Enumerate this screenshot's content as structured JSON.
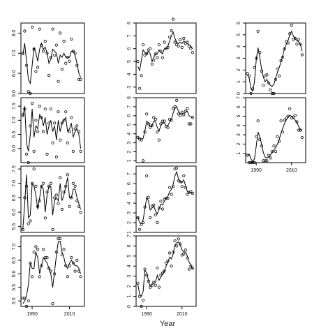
{
  "figure": {
    "xlabel": "Year"
  },
  "chart_data": [
    {
      "type": "line",
      "xlabel": "",
      "ylabel": "",
      "xlim": [
        1984,
        2018
      ],
      "ylim": [
        5.0,
        8.5
      ],
      "yticks": [
        5.0,
        6.0,
        7.0,
        8.0
      ],
      "yticklabels": [
        "5.0",
        "6.0",
        "7.0",
        "8.0"
      ],
      "xticks": [],
      "xticklabels": [],
      "points_x": [
        1985,
        1986,
        1987,
        1988,
        1989,
        1990,
        1991,
        1992,
        1993,
        1994,
        1995,
        1996,
        1997,
        1998,
        1999,
        2000,
        2001,
        2002,
        2003,
        2004,
        2005,
        2006,
        2007,
        2008,
        2009,
        2010,
        2011,
        2012,
        2013,
        2014,
        2015,
        2016
      ],
      "points_y": [
        7.0,
        8.1,
        6.4,
        5.1,
        5.0,
        8.3,
        7.2,
        6.1,
        6.3,
        8.2,
        7.4,
        7.1,
        7.6,
        7.0,
        5.9,
        6.8,
        8.2,
        6.9,
        7.4,
        5.6,
        8.0,
        6.2,
        7.6,
        6.5,
        6.8,
        6.6,
        7.7,
        7.1,
        7.0,
        6.4,
        5.7,
        5.7
      ],
      "fit_y": [
        6.9,
        7.5,
        6.6,
        5.7,
        5.5,
        6.4,
        7.3,
        7.0,
        6.6,
        7.2,
        7.5,
        7.2,
        7.3,
        7.0,
        6.5,
        6.7,
        7.2,
        7.1,
        7.0,
        6.5,
        6.9,
        6.8,
        7.0,
        6.8,
        6.8,
        6.8,
        7.1,
        7.1,
        6.9,
        6.5,
        6.0,
        5.8
      ]
    },
    {
      "type": "line",
      "xlabel": "",
      "ylabel": "",
      "xlim": [
        1984,
        2018
      ],
      "ylim": [
        2.5,
        8.0
      ],
      "yticks": [
        3,
        4,
        5,
        6,
        7,
        8
      ],
      "yticklabels": [
        "3",
        "4",
        "5",
        "6",
        "7",
        "8"
      ],
      "xticks": [],
      "xticklabels": [],
      "points_x": [
        1985,
        1986,
        1987,
        1988,
        1989,
        1990,
        1991,
        1992,
        1993,
        1994,
        1995,
        1996,
        1997,
        1998,
        1999,
        2000,
        2001,
        2002,
        2003,
        2004,
        2005,
        2006,
        2007,
        2008,
        2009,
        2010,
        2011,
        2012,
        2013,
        2014,
        2015,
        2016
      ],
      "points_y": [
        5.0,
        2.9,
        3.9,
        6.3,
        5.5,
        5.6,
        5.9,
        6.0,
        4.8,
        5.1,
        5.6,
        5.3,
        6.3,
        5.8,
        5.3,
        6.5,
        6.0,
        6.1,
        6.9,
        7.4,
        8.3,
        6.5,
        6.3,
        6.2,
        6.7,
        6.1,
        6.8,
        6.4,
        6.5,
        6.2,
        6.0,
        5.7
      ],
      "fit_y": [
        4.6,
        4.3,
        5.1,
        5.9,
        5.7,
        5.6,
        5.8,
        5.6,
        5.0,
        5.3,
        5.6,
        5.6,
        5.9,
        5.7,
        5.6,
        6.0,
        6.0,
        6.2,
        6.6,
        7.0,
        7.3,
        6.8,
        6.5,
        6.4,
        6.5,
        6.4,
        6.6,
        6.5,
        6.4,
        6.3,
        6.2,
        6.0
      ]
    },
    {
      "type": "line",
      "xlabel": "",
      "ylabel": "",
      "xlim": [
        1984,
        2018
      ],
      "ylim": [
        0,
        6
      ],
      "yticks": [
        0,
        1,
        2,
        3,
        4,
        5,
        6
      ],
      "yticklabels": [
        "0",
        "1",
        "2",
        "3",
        "4",
        "5",
        "6"
      ],
      "xticks": [],
      "xticklabels": [],
      "points_x": [
        1985,
        1986,
        1987,
        1988,
        1989,
        1990,
        1991,
        1992,
        1993,
        1994,
        1995,
        1996,
        1997,
        1998,
        1999,
        2000,
        2001,
        2002,
        2003,
        2004,
        2005,
        2006,
        2007,
        2008,
        2009,
        2010,
        2011,
        2012,
        2013,
        2014,
        2015,
        2016
      ],
      "points_y": [
        1.7,
        1.5,
        0.0,
        0.4,
        2.2,
        3.0,
        5.3,
        3.5,
        1.9,
        0.7,
        1.5,
        1.6,
        0.9,
        0.3,
        0.0,
        0.0,
        1.2,
        2.1,
        1.5,
        2.8,
        3.1,
        3.8,
        4.4,
        4.3,
        5.1,
        5.8,
        4.6,
        4.7,
        4.2,
        4.6,
        4.2,
        3.3
      ],
      "fit_y": [
        1.6,
        1.3,
        0.4,
        0.2,
        1.0,
        2.9,
        3.9,
        3.1,
        2.1,
        1.4,
        1.0,
        1.2,
        0.9,
        0.7,
        0.6,
        0.8,
        1.3,
        1.8,
        2.2,
        2.7,
        3.2,
        3.8,
        4.2,
        4.5,
        5.0,
        5.3,
        4.9,
        4.7,
        4.5,
        4.4,
        4.2,
        3.6
      ]
    },
    {
      "type": "line",
      "xlabel": "",
      "ylabel": "",
      "xlim": [
        1984,
        2018
      ],
      "ylim": [
        5.5,
        7.8
      ],
      "yticks": [
        6.0,
        6.5,
        7.0,
        7.5
      ],
      "yticklabels": [
        "6.0",
        "6.5",
        "7.0",
        "7.5"
      ],
      "xticks": [],
      "xticklabels": [],
      "points_x": [
        1985,
        1986,
        1987,
        1988,
        1989,
        1990,
        1991,
        1992,
        1993,
        1994,
        1995,
        1996,
        1997,
        1998,
        1999,
        2000,
        2001,
        2002,
        2003,
        2004,
        2005,
        2006,
        2007,
        2008,
        2009,
        2010,
        2011,
        2012,
        2013,
        2014,
        2015,
        2016
      ],
      "points_y": [
        7.2,
        7.4,
        5.8,
        5.5,
        6.8,
        7.6,
        5.9,
        7.0,
        6.6,
        7.5,
        7.1,
        6.6,
        7.4,
        5.8,
        6.9,
        7.4,
        6.2,
        6.9,
        5.7,
        7.3,
        6.3,
        6.9,
        7.0,
        7.3,
        6.2,
        6.6,
        7.1,
        5.9,
        6.7,
        6.8,
        6.6,
        5.9
      ],
      "fit_y": [
        7.1,
        7.5,
        6.2,
        5.9,
        6.5,
        7.4,
        6.4,
        6.8,
        6.7,
        7.2,
        7.1,
        6.8,
        7.1,
        6.5,
        6.8,
        7.0,
        6.6,
        6.8,
        6.3,
        7.0,
        6.6,
        6.9,
        7.0,
        7.1,
        6.6,
        6.7,
        6.9,
        6.4,
        6.6,
        6.7,
        6.5,
        6.0
      ]
    },
    {
      "type": "line",
      "xlabel": "",
      "ylabel": "",
      "xlim": [
        1984,
        2018
      ],
      "ylim": [
        0.8,
        8.0
      ],
      "yticks": [
        1,
        2,
        3,
        4,
        5,
        6,
        7,
        8
      ],
      "yticklabels": [
        "1",
        "2",
        "3",
        "4",
        "5",
        "6",
        "7",
        "8"
      ],
      "xticks": [],
      "xticklabels": [],
      "points_x": [
        1985,
        1986,
        1987,
        1988,
        1989,
        1990,
        1991,
        1992,
        1993,
        1994,
        1995,
        1996,
        1997,
        1998,
        1999,
        2000,
        2001,
        2002,
        2003,
        2004,
        2005,
        2006,
        2007,
        2008,
        2009,
        2010,
        2011,
        2012,
        2013,
        2014,
        2015,
        2016
      ],
      "points_y": [
        3.6,
        3.4,
        3.3,
        1.0,
        4.2,
        6.2,
        5.1,
        4.7,
        4.9,
        5.8,
        5.6,
        4.2,
        3.3,
        5.1,
        5.4,
        5.4,
        4.8,
        4.7,
        5.6,
        5.5,
        6.8,
        7.0,
        7.7,
        6.2,
        6.0,
        6.4,
        6.1,
        6.5,
        6.8,
        5.1,
        5.1,
        5.8
      ],
      "fit_y": [
        3.6,
        3.5,
        3.4,
        3.5,
        4.3,
        5.4,
        5.2,
        4.8,
        4.9,
        5.4,
        5.3,
        4.7,
        4.3,
        4.9,
        5.2,
        5.2,
        4.9,
        4.9,
        5.3,
        5.6,
        6.3,
        6.8,
        7.0,
        6.5,
        6.2,
        6.3,
        6.2,
        6.4,
        6.5,
        6.0,
        5.9,
        5.8
      ]
    },
    {
      "type": "line",
      "xlabel": "",
      "ylabel": "",
      "xlim": [
        1984,
        2018
      ],
      "ylim": [
        0,
        7
      ],
      "yticks": [
        1,
        2,
        3,
        4,
        5,
        6,
        7
      ],
      "yticklabels": [
        "1",
        "2",
        "3",
        "4",
        "5",
        "6",
        "7"
      ],
      "xticks": [
        1990,
        2010
      ],
      "xticklabels": [
        "1990",
        "2010"
      ],
      "points_x": [
        1985,
        1986,
        1987,
        1988,
        1989,
        1990,
        1991,
        1992,
        1993,
        1994,
        1995,
        1996,
        1997,
        1998,
        1999,
        2000,
        2001,
        2002,
        2003,
        2004,
        2005,
        2006,
        2007,
        2008,
        2009,
        2010,
        2011,
        2012,
        2013,
        2014,
        2015,
        2016
      ],
      "points_y": [
        0.8,
        0.0,
        0.0,
        0.0,
        0.0,
        2.8,
        4.5,
        2.5,
        1.8,
        0.2,
        0.2,
        0.2,
        0.8,
        0.5,
        1.2,
        1.8,
        1.2,
        2.8,
        2.3,
        4.5,
        3.3,
        4.6,
        4.8,
        5.0,
        5.8,
        4.8,
        4.9,
        5.1,
        4.4,
        3.5,
        3.5,
        2.7
      ],
      "fit_y": [
        0.8,
        0.9,
        0.4,
        0.1,
        0.4,
        1.8,
        3.3,
        2.8,
        2.0,
        1.1,
        0.6,
        0.5,
        0.6,
        0.8,
        1.1,
        1.4,
        1.6,
        2.0,
        2.5,
        3.2,
        3.7,
        4.2,
        4.6,
        4.9,
        5.1,
        5.0,
        4.8,
        4.6,
        4.3,
        3.9,
        3.6,
        3.4
      ]
    },
    {
      "type": "line",
      "xlabel": "",
      "ylabel": "",
      "xlim": [
        1984,
        2018
      ],
      "ylim": [
        5.3,
        7.6
      ],
      "yticks": [
        5.5,
        6.0,
        6.5,
        7.0,
        7.5
      ],
      "yticklabels": [
        "5.5",
        "6.0",
        "6.5",
        "7.0",
        "7.5"
      ],
      "xticks": [],
      "xticklabels": [],
      "points_x": [
        1985,
        1986,
        1987,
        1988,
        1989,
        1990,
        1991,
        1992,
        1993,
        1994,
        1995,
        1996,
        1997,
        1998,
        1999,
        2000,
        2001,
        2002,
        2003,
        2004,
        2005,
        2006,
        2007,
        2008,
        2009,
        2010,
        2011,
        2012,
        2013,
        2014,
        2015,
        2016
      ],
      "points_y": [
        5.4,
        6.5,
        6.9,
        5.6,
        5.7,
        7.0,
        7.5,
        6.9,
        6.2,
        6.4,
        6.9,
        7.0,
        5.8,
        6.7,
        6.9,
        7.0,
        5.4,
        6.5,
        6.6,
        6.3,
        7.2,
        6.1,
        6.7,
        6.9,
        7.3,
        6.2,
        6.5,
        7.0,
        6.9,
        6.4,
        6.2,
        6.0
      ],
      "fit_y": [
        5.4,
        6.3,
        7.3,
        5.8,
        5.9,
        7.0,
        6.9,
        6.6,
        6.1,
        6.5,
        6.9,
        6.8,
        6.0,
        6.6,
        6.9,
        6.9,
        5.9,
        6.4,
        6.5,
        6.4,
        7.0,
        6.4,
        6.6,
        6.9,
        7.2,
        6.5,
        6.5,
        6.8,
        6.8,
        6.5,
        6.3,
        6.1
      ]
    },
    {
      "type": "line",
      "xlabel": "",
      "ylabel": "",
      "xlim": [
        1984,
        2018
      ],
      "ylim": [
        1,
        7.8
      ],
      "yticks": [
        1,
        2,
        3,
        4,
        5,
        6,
        7
      ],
      "yticklabels": [
        "1",
        "2",
        "3",
        "4",
        "5",
        "6",
        "7"
      ],
      "xticks": [],
      "xticklabels": [],
      "points_x": [
        1985,
        1986,
        1987,
        1988,
        1989,
        1990,
        1991,
        1992,
        1993,
        1994,
        1995,
        1996,
        1997,
        1998,
        1999,
        2000,
        2001,
        2002,
        2003,
        2004,
        2005,
        2006,
        2007,
        2008,
        2009,
        2010,
        2011,
        2012,
        2013,
        2014,
        2015,
        2016
      ],
      "points_y": [
        2.5,
        1.3,
        1.8,
        2.0,
        3.6,
        6.8,
        4.6,
        2.5,
        3.7,
        3.8,
        2.8,
        2.0,
        3.5,
        4.2,
        3.4,
        4.4,
        4.5,
        4.5,
        5.6,
        4.9,
        5.7,
        7.5,
        7.6,
        6.3,
        6.2,
        5.7,
        6.8,
        5.6,
        4.9,
        5.1,
        5.2,
        5.0
      ],
      "fit_y": [
        2.6,
        2.0,
        1.9,
        2.3,
        3.4,
        4.6,
        4.2,
        3.3,
        3.5,
        3.7,
        3.2,
        2.9,
        3.4,
        3.9,
        3.8,
        4.2,
        4.5,
        4.7,
        5.2,
        5.4,
        5.9,
        6.8,
        7.2,
        6.5,
        6.2,
        6.1,
        6.4,
        5.8,
        5.2,
        5.1,
        5.1,
        5.0
      ]
    },
    {
      "type": "line",
      "xlabel": "",
      "ylabel": "",
      "xlim": [
        1984,
        2018
      ],
      "ylim": [
        4.8,
        7.4
      ],
      "yticks": [
        5.0,
        5.5,
        6.0,
        6.5,
        7.0
      ],
      "yticklabels": [
        "5.0",
        "5.5",
        "6.0",
        "6.5",
        "7.0"
      ],
      "xticks": [
        1990,
        2010
      ],
      "xticklabels": [
        "1990",
        "2010"
      ],
      "points_x": [
        1985,
        1986,
        1987,
        1988,
        1989,
        1990,
        1991,
        1992,
        1993,
        1994,
        1995,
        1996,
        1997,
        1998,
        1999,
        2000,
        2001,
        2002,
        2003,
        2004,
        2005,
        2006,
        2007,
        2008,
        2009,
        2010,
        2011,
        2012,
        2013,
        2014,
        2015,
        2016
      ],
      "points_y": [
        5.1,
        5.1,
        4.8,
        5.0,
        6.4,
        5.9,
        6.8,
        7.0,
        6.9,
        5.9,
        6.3,
        6.9,
        6.6,
        6.6,
        6.2,
        6.1,
        4.9,
        6.0,
        6.8,
        7.3,
        7.3,
        6.7,
        6.9,
        6.3,
        5.9,
        6.3,
        6.6,
        6.4,
        6.1,
        6.5,
        6.1,
        5.9
      ],
      "fit_y": [
        4.9,
        5.0,
        5.2,
        5.6,
        6.4,
        6.2,
        6.2,
        6.8,
        6.6,
        6.0,
        6.3,
        6.6,
        6.5,
        6.4,
        6.2,
        6.0,
        5.5,
        6.1,
        6.7,
        7.2,
        7.2,
        6.8,
        6.6,
        6.3,
        6.2,
        6.4,
        6.5,
        6.4,
        6.3,
        6.3,
        6.2,
        6.0
      ]
    },
    {
      "type": "line",
      "xlabel": "",
      "ylabel": "",
      "xlim": [
        1984,
        2018
      ],
      "ylim": [
        0,
        7
      ],
      "yticks": [
        0,
        1,
        2,
        3,
        4,
        5,
        6,
        7
      ],
      "yticklabels": [
        "0",
        "1",
        "2",
        "3",
        "4",
        "5",
        "6",
        "7"
      ],
      "xticks": [
        1990,
        2010
      ],
      "xticklabels": [
        "1990",
        "2010"
      ],
      "points_x": [
        1985,
        1986,
        1987,
        1988,
        1989,
        1990,
        1991,
        1992,
        1993,
        1994,
        1995,
        1996,
        1997,
        1998,
        1999,
        2000,
        2001,
        2002,
        2003,
        2004,
        2005,
        2006,
        2007,
        2008,
        2009,
        2010,
        2011,
        2012,
        2013,
        2014,
        2015,
        2016
      ],
      "points_y": [
        2.3,
        1.0,
        0.0,
        0.6,
        3.7,
        3.1,
        2.5,
        1.9,
        2.1,
        2.4,
        2.1,
        3.8,
        1.9,
        3.1,
        3.3,
        3.5,
        4.3,
        4.5,
        5.3,
        4.0,
        5.4,
        6.5,
        6.0,
        6.7,
        6.2,
        5.1,
        5.2,
        5.6,
        4.8,
        3.7,
        4.0,
        3.8
      ],
      "fit_y": [
        2.2,
        1.2,
        1.0,
        1.5,
        3.6,
        3.3,
        2.6,
        2.0,
        2.2,
        2.3,
        2.4,
        3.1,
        2.6,
        2.9,
        3.2,
        3.5,
        4.0,
        4.4,
        4.9,
        4.7,
        5.2,
        6.1,
        6.3,
        6.4,
        6.1,
        5.6,
        5.4,
        5.4,
        5.0,
        4.4,
        4.1,
        3.7
      ]
    }
  ]
}
